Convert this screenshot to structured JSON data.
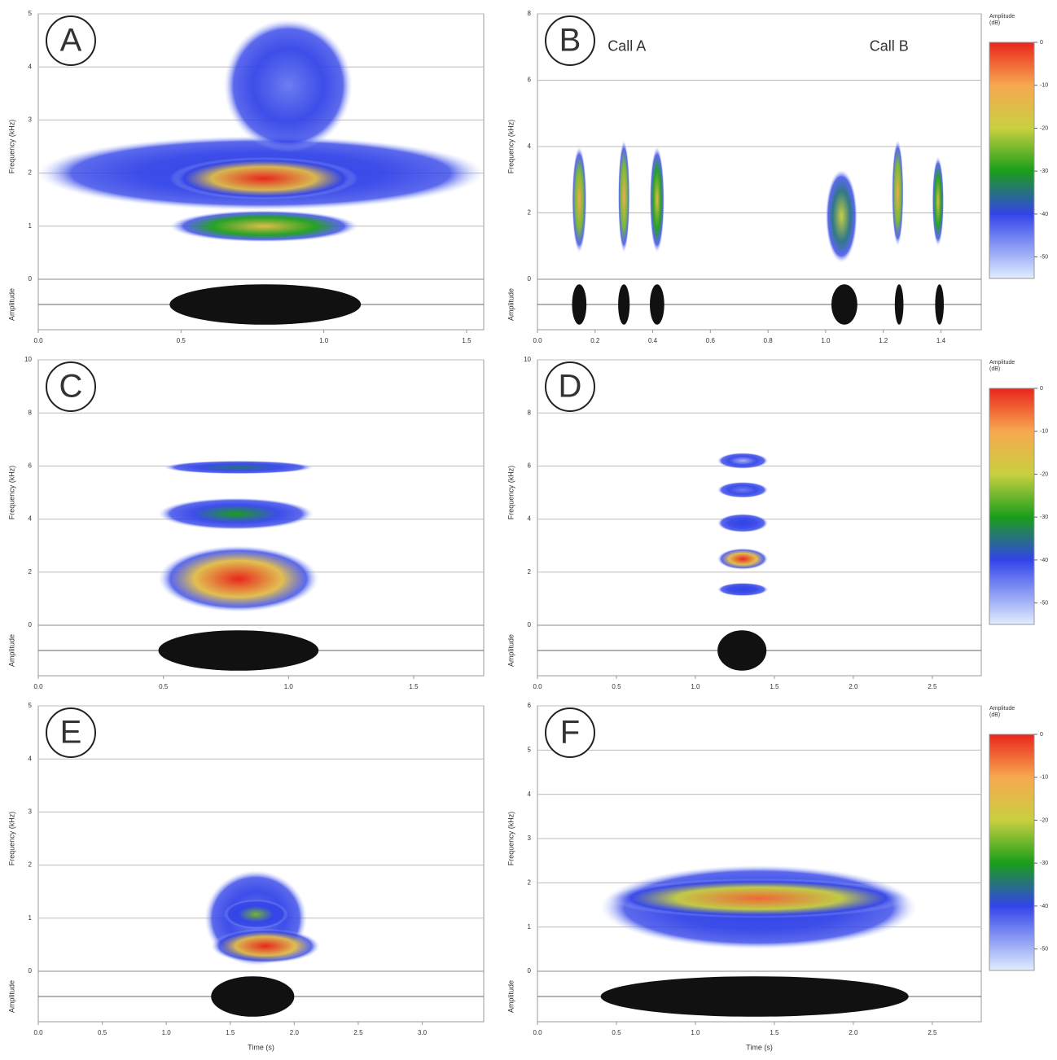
{
  "chart_data": [
    {
      "type": "spectrogram",
      "label": "A",
      "ylabel": "Frequency (kHz)",
      "amplitude_label": "Amplitude",
      "xlim": [
        0,
        1.56
      ],
      "xticks": [
        {
          "value": 0,
          "label": "0.0"
        },
        {
          "value": 0.5,
          "label": "0.5"
        },
        {
          "value": 1,
          "label": "1.0"
        },
        {
          "value": 1.5,
          "label": "1.5"
        }
      ],
      "ylim": [
        0,
        5
      ],
      "yticks": [
        0,
        1,
        2,
        3,
        4,
        5
      ],
      "bands": [
        {
          "x": [
            0,
            1.56
          ],
          "y": [
            1.3,
            2.7
          ],
          "peak_db": -40
        },
        {
          "x": [
            0.65,
            1.1
          ],
          "y": [
            2.4,
            4.9
          ],
          "peak_db": -45
        },
        {
          "x": [
            0.46,
            1.12
          ],
          "y": [
            0.7,
            1.3
          ],
          "peak_db": -15
        },
        {
          "x": [
            0.46,
            1.12
          ],
          "y": [
            1.5,
            2.3
          ],
          "peak_db": 0
        }
      ],
      "waveform": [
        [
          0.46,
          1.13
        ]
      ]
    },
    {
      "type": "spectrogram",
      "label": "B",
      "ylabel": "Frequency (kHz)",
      "amplitude_label": "Amplitude",
      "xlim": [
        0,
        1.54
      ],
      "xticks": [
        {
          "value": 0,
          "label": "0.0"
        },
        {
          "value": 0.2,
          "label": "0.2"
        },
        {
          "value": 0.4,
          "label": "0.4"
        },
        {
          "value": 0.6,
          "label": "0.6"
        },
        {
          "value": 0.8,
          "label": "0.8"
        },
        {
          "value": 1,
          "label": "1.0"
        },
        {
          "value": 1.2,
          "label": "1.2"
        },
        {
          "value": 1.4,
          "label": "1.4"
        }
      ],
      "ylim": [
        0,
        8
      ],
      "yticks": [
        0,
        2,
        4,
        6,
        8
      ],
      "bands": [
        {
          "x": [
            0.12,
            0.17
          ],
          "y": [
            0.8,
            4
          ],
          "peak_db": -10
        },
        {
          "x": [
            0.28,
            0.32
          ],
          "y": [
            0.8,
            4.2
          ],
          "peak_db": -10
        },
        {
          "x": [
            0.39,
            0.44
          ],
          "y": [
            0.8,
            4
          ],
          "peak_db": -15
        },
        {
          "x": [
            1.0,
            1.11
          ],
          "y": [
            0.5,
            3.3
          ],
          "peak_db": -20
        },
        {
          "x": [
            1.23,
            1.27
          ],
          "y": [
            1,
            4.2
          ],
          "peak_db": -10
        },
        {
          "x": [
            1.37,
            1.41
          ],
          "y": [
            1,
            3.7
          ],
          "peak_db": -15
        }
      ],
      "waveform": [
        [
          0.12,
          0.17
        ],
        [
          0.28,
          0.32
        ],
        [
          0.39,
          0.44
        ],
        [
          1.02,
          1.11
        ],
        [
          1.24,
          1.27
        ],
        [
          1.38,
          1.41
        ]
      ],
      "annotations": [
        "Call A",
        "Call B"
      ],
      "colorbar": {
        "title": [
          "Amplitude",
          "(dB)"
        ],
        "lim": [
          0,
          -55
        ],
        "ticks": [
          0,
          -10,
          -20,
          -30,
          -40,
          -50
        ]
      }
    },
    {
      "type": "spectrogram",
      "label": "C",
      "ylabel": "Frequency (kHz)",
      "amplitude_label": "Amplitude",
      "xlim": [
        0,
        1.78
      ],
      "xticks": [
        {
          "value": 0,
          "label": "0.0"
        },
        {
          "value": 0.5,
          "label": "0.5"
        },
        {
          "value": 1,
          "label": "1.0"
        },
        {
          "value": 1.5,
          "label": "1.5"
        }
      ],
      "ylim": [
        0,
        10
      ],
      "yticks": [
        0,
        2,
        4,
        6,
        8,
        10
      ],
      "bands": [
        {
          "x": [
            0.5,
            1.1
          ],
          "y": [
            5.7,
            6.2
          ],
          "peak_db": -35
        },
        {
          "x": [
            0.48,
            1.1
          ],
          "y": [
            3.6,
            4.8
          ],
          "peak_db": -30
        },
        {
          "x": [
            0.48,
            1.12
          ],
          "y": [
            0.5,
            3.0
          ],
          "peak_db": 0
        }
      ],
      "waveform": [
        [
          0.48,
          1.12
        ]
      ]
    },
    {
      "type": "spectrogram",
      "label": "D",
      "ylabel": "Frequency (kHz)",
      "amplitude_label": "Amplitude",
      "xlim": [
        0,
        2.81
      ],
      "xticks": [
        {
          "value": 0,
          "label": "0.0"
        },
        {
          "value": 0.5,
          "label": "0.5"
        },
        {
          "value": 1,
          "label": "1.0"
        },
        {
          "value": 1.5,
          "label": "1.5"
        },
        {
          "value": 2,
          "label": "2.0"
        },
        {
          "value": 2.5,
          "label": "2.5"
        }
      ],
      "ylim": [
        0,
        10
      ],
      "yticks": [
        0,
        2,
        4,
        6,
        8,
        10
      ],
      "bands": [
        {
          "x": [
            1.14,
            1.46
          ],
          "y": [
            5.9,
            6.5
          ],
          "peak_db": -50
        },
        {
          "x": [
            1.14,
            1.46
          ],
          "y": [
            4.8,
            5.4
          ],
          "peak_db": -45
        },
        {
          "x": [
            1.14,
            1.46
          ],
          "y": [
            3.5,
            4.2
          ],
          "peak_db": -40
        },
        {
          "x": [
            1.14,
            1.46
          ],
          "y": [
            1.1,
            1.6
          ],
          "peak_db": -40
        },
        {
          "x": [
            1.14,
            1.46
          ],
          "y": [
            2.1,
            2.9
          ],
          "peak_db": 0
        }
      ],
      "waveform": [
        [
          1.14,
          1.45
        ]
      ],
      "colorbar": {
        "title": [
          "Amplitude",
          "(dB)"
        ],
        "lim": [
          0,
          -55
        ],
        "ticks": [
          0,
          -10,
          -20,
          -30,
          -40,
          -50
        ]
      }
    },
    {
      "type": "spectrogram",
      "label": "E",
      "ylabel": "Frequency (kHz)",
      "amplitude_label": "Amplitude",
      "xlabel": "Time (s)",
      "xlim": [
        0,
        3.48
      ],
      "xticks": [
        {
          "value": 0,
          "label": "0.0"
        },
        {
          "value": 0.5,
          "label": "0.5"
        },
        {
          "value": 1,
          "label": "1.0"
        },
        {
          "value": 1.5,
          "label": "1.5"
        },
        {
          "value": 2,
          "label": "2.0"
        },
        {
          "value": 2.5,
          "label": "2.5"
        },
        {
          "value": 3,
          "label": "3.0"
        }
      ],
      "ylim": [
        0,
        5
      ],
      "yticks": [
        0,
        1,
        2,
        3,
        4,
        5
      ],
      "bands": [
        {
          "x": [
            1.3,
            2.1
          ],
          "y": [
            0.1,
            1.9
          ],
          "peak_db": -45
        },
        {
          "x": [
            1.45,
            1.95
          ],
          "y": [
            0.8,
            1.35
          ],
          "peak_db": -25
        },
        {
          "x": [
            1.35,
            2.2
          ],
          "y": [
            0.15,
            0.8
          ],
          "peak_db": 0
        }
      ],
      "waveform": [
        [
          1.35,
          2.0
        ]
      ]
    },
    {
      "type": "spectrogram",
      "label": "F",
      "ylabel": "Frequency (kHz)",
      "amplitude_label": "Amplitude",
      "xlabel": "Time (s)",
      "xlim": [
        0,
        2.81
      ],
      "xticks": [
        {
          "value": 0,
          "label": "0.0"
        },
        {
          "value": 0.5,
          "label": "0.5"
        },
        {
          "value": 1,
          "label": "1.0"
        },
        {
          "value": 1.5,
          "label": "1.5"
        },
        {
          "value": 2,
          "label": "2.0"
        },
        {
          "value": 2.5,
          "label": "2.5"
        }
      ],
      "ylim": [
        0,
        6
      ],
      "yticks": [
        0,
        1,
        2,
        3,
        4,
        5,
        6
      ],
      "bands": [
        {
          "x": [
            0.4,
            2.4
          ],
          "y": [
            0.5,
            2.4
          ],
          "peak_db": -40
        },
        {
          "x": [
            0.45,
            2.35
          ],
          "y": [
            1.2,
            2.1
          ],
          "peak_db": -5
        }
      ],
      "waveform": [
        [
          0.4,
          2.35
        ]
      ],
      "colorbar": {
        "title": [
          "Amplitude",
          "(dB)"
        ],
        "lim": [
          0,
          -55
        ],
        "ticks": [
          0,
          -10,
          -20,
          -30,
          -40,
          -50
        ]
      }
    }
  ]
}
